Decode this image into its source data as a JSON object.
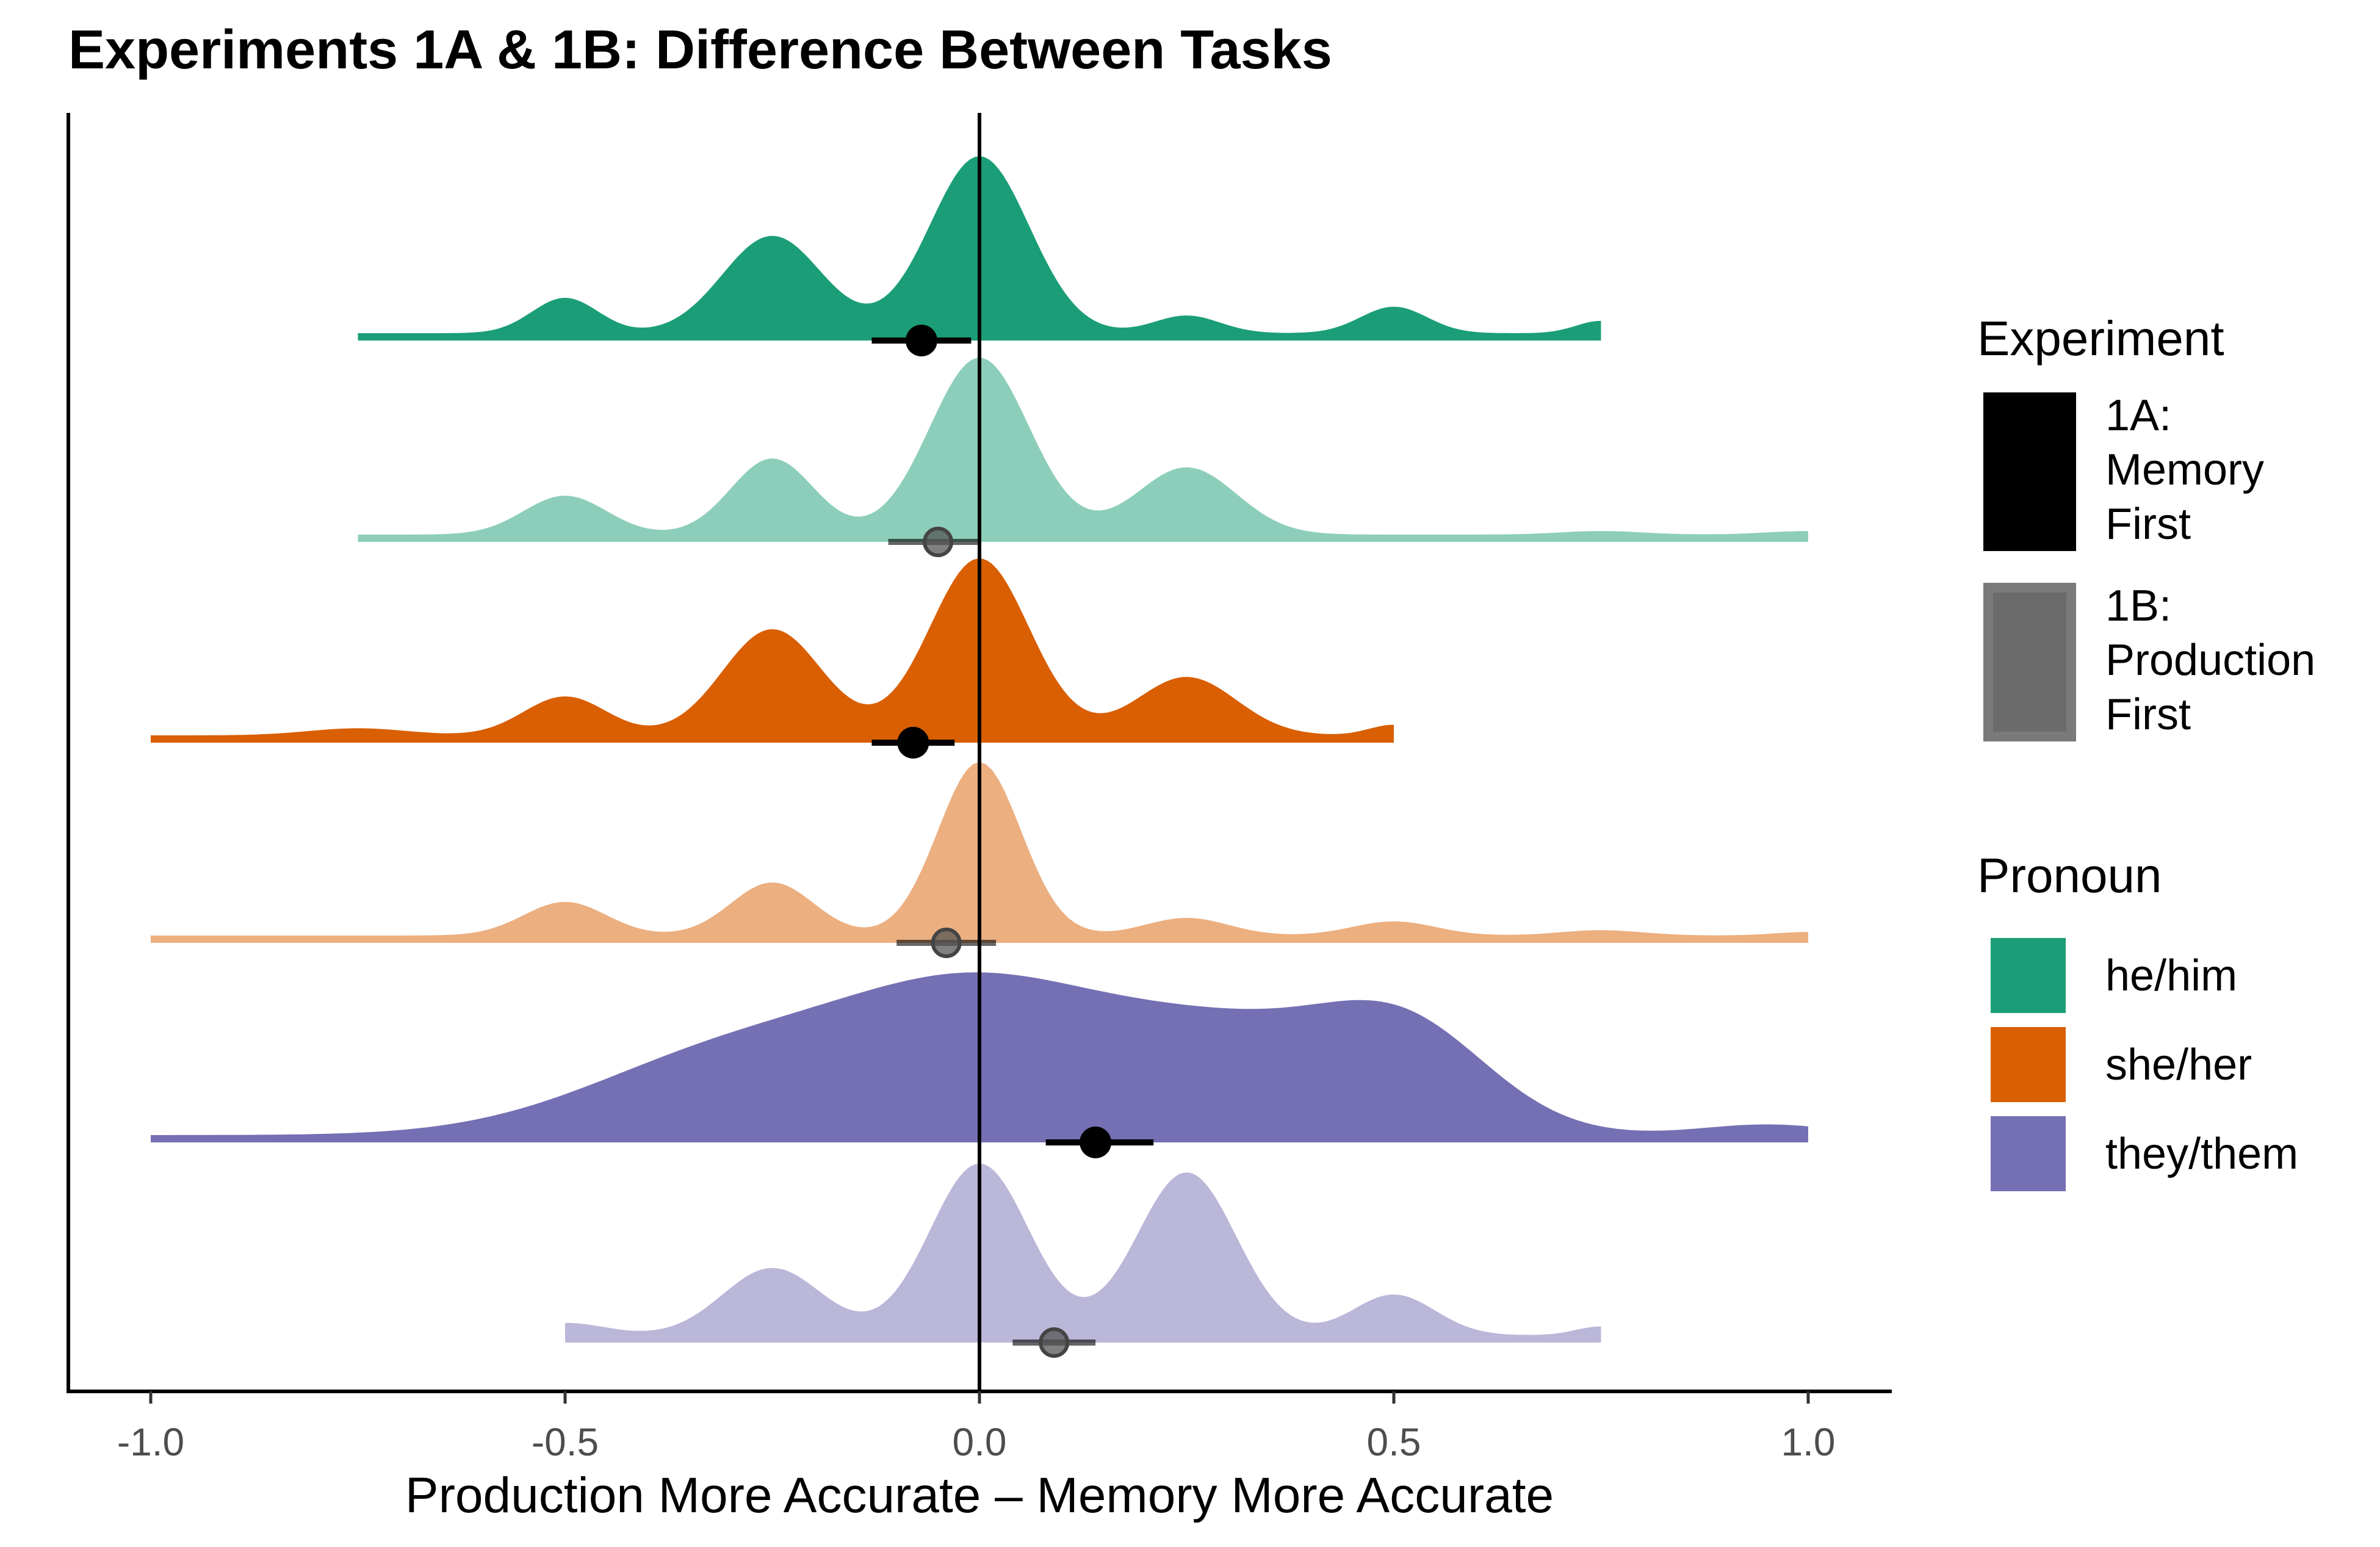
{
  "chart_data": {
    "type": "ridgeline density with point-interval",
    "title": "Experiments 1A & 1B: Difference Between Tasks",
    "xlabel": "Production More Accurate – Memory More Accurate",
    "ylabel": "",
    "xlim": [
      -1.1,
      1.1
    ],
    "x_ticks": [
      -1.0,
      -0.5,
      0.0,
      0.5,
      1.0
    ],
    "x_tick_labels": [
      "-1.0",
      "-0.5",
      "0.0",
      "0.5",
      "1.0"
    ],
    "reference_line_x": 0.0,
    "grid": false,
    "legend_position": "right",
    "legends": {
      "experiment": {
        "title": "Experiment",
        "items": [
          {
            "label_lines": [
              "1A:",
              "Memory",
              "First"
            ],
            "color": "#000000",
            "opacity": 1.0
          },
          {
            "label_lines": [
              "1B:",
              "Production",
              "First"
            ],
            "color": "#000000",
            "opacity": 0.6
          }
        ]
      },
      "pronoun": {
        "title": "Pronoun",
        "items": [
          {
            "label": "he/him",
            "color": "#1b9e77"
          },
          {
            "label": "she/her",
            "color": "#d95f02"
          },
          {
            "label": "they/them",
            "color": "#7570b3"
          }
        ]
      }
    },
    "series": [
      {
        "pronoun": "he/him",
        "experiment": "1A",
        "color": "#1b9e77",
        "fill_opacity": 1.0,
        "range": [
          -0.75,
          0.75
        ],
        "peaks": [
          [
            -0.5,
            0.2,
            0.04
          ],
          [
            -0.25,
            0.55,
            0.06
          ],
          [
            0.0,
            1.0,
            0.06
          ],
          [
            0.25,
            0.1,
            0.04
          ],
          [
            0.5,
            0.15,
            0.04
          ],
          [
            0.75,
            0.07,
            0.03
          ]
        ],
        "point_estimate": -0.07,
        "interval": [
          -0.13,
          -0.01
        ]
      },
      {
        "pronoun": "he/him",
        "experiment": "1B",
        "color": "#1b9e77",
        "fill_opacity": 0.5,
        "range": [
          -0.75,
          1.0
        ],
        "peaks": [
          [
            -0.5,
            0.22,
            0.05
          ],
          [
            -0.25,
            0.43,
            0.05
          ],
          [
            0.0,
            1.0,
            0.06
          ],
          [
            0.25,
            0.38,
            0.06
          ],
          [
            0.75,
            0.02,
            0.05
          ],
          [
            1.0,
            0.02,
            0.05
          ]
        ],
        "point_estimate": -0.05,
        "interval": [
          -0.11,
          0.0
        ]
      },
      {
        "pronoun": "she/her",
        "experiment": "1A",
        "color": "#d95f02",
        "fill_opacity": 1.0,
        "range": [
          -1.0,
          0.5
        ],
        "peaks": [
          [
            -0.75,
            0.04,
            0.06
          ],
          [
            -0.5,
            0.22,
            0.05
          ],
          [
            -0.25,
            0.6,
            0.06
          ],
          [
            0.0,
            1.0,
            0.06
          ],
          [
            0.25,
            0.33,
            0.06
          ],
          [
            0.5,
            0.06,
            0.03
          ]
        ],
        "point_estimate": -0.08,
        "interval": [
          -0.13,
          -0.03
        ]
      },
      {
        "pronoun": "she/her",
        "experiment": "1B",
        "color": "#d95f02",
        "fill_opacity": 0.5,
        "range": [
          -1.0,
          1.0
        ],
        "peaks": [
          [
            -0.5,
            0.19,
            0.05
          ],
          [
            -0.25,
            0.3,
            0.05
          ],
          [
            0.0,
            0.98,
            0.05
          ],
          [
            0.25,
            0.1,
            0.05
          ],
          [
            0.5,
            0.08,
            0.05
          ],
          [
            0.75,
            0.03,
            0.05
          ],
          [
            1.0,
            0.02,
            0.04
          ]
        ],
        "point_estimate": -0.04,
        "interval": [
          -0.1,
          0.02
        ]
      },
      {
        "pronoun": "they/them",
        "experiment": "1A",
        "color": "#7570b3",
        "fill_opacity": 1.0,
        "range": [
          -1.0,
          1.0
        ],
        "peaks": [
          [
            -0.3,
            0.45,
            0.17
          ],
          [
            0.0,
            0.75,
            0.16
          ],
          [
            0.32,
            0.55,
            0.16
          ],
          [
            0.52,
            0.45,
            0.1
          ],
          [
            0.95,
            0.06,
            0.08
          ]
        ],
        "point_estimate": 0.14,
        "interval": [
          0.08,
          0.21
        ]
      },
      {
        "pronoun": "they/them",
        "experiment": "1B",
        "color": "#7570b3",
        "fill_opacity": 0.5,
        "range": [
          -0.5,
          0.75
        ],
        "peaks": [
          [
            -0.5,
            0.07,
            0.05
          ],
          [
            -0.25,
            0.38,
            0.06
          ],
          [
            0.0,
            0.97,
            0.06
          ],
          [
            0.25,
            0.92,
            0.06
          ],
          [
            0.5,
            0.23,
            0.05
          ],
          [
            0.75,
            0.05,
            0.03
          ]
        ],
        "point_estimate": 0.09,
        "interval": [
          0.04,
          0.14
        ]
      }
    ]
  }
}
